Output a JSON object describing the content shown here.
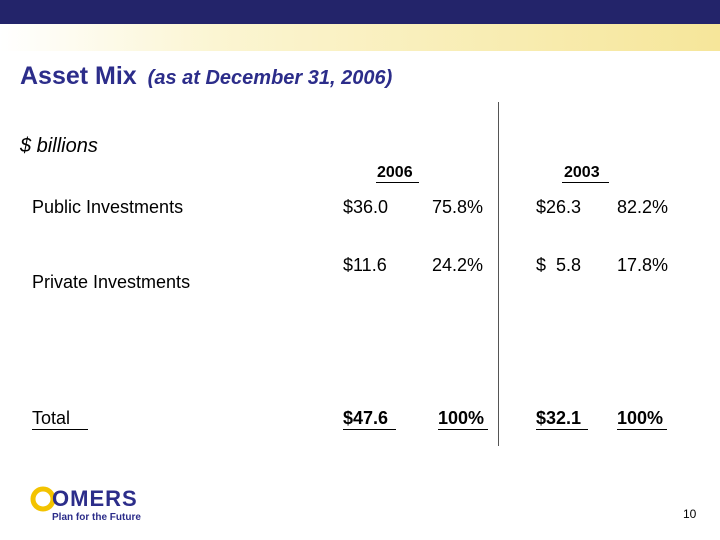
{
  "slide": {
    "title": "Asset Mix",
    "title_sub": "(as at December 31, 2006)",
    "units": "$ billions",
    "page_number": "10",
    "colors": {
      "band": "#23246a",
      "accent": "#f6e69a",
      "title": "#2c2d8a"
    }
  },
  "table": {
    "years": [
      "2006",
      "2003"
    ],
    "rows": [
      {
        "label": "Public Investments",
        "v2006": "$36.0",
        "p2006": "75.8%",
        "v2003": "$26.3",
        "p2003": "82.2%"
      },
      {
        "label": "Private Investments",
        "v2006": "$11.6",
        "p2006": "24.2%",
        "v2003": "$  5.8",
        "p2003": "17.8%"
      },
      {
        "label": "Total",
        "v2006": "$47.6",
        "p2006": "100%",
        "v2003": "$32.1",
        "p2003": "100%"
      }
    ]
  },
  "logo": {
    "name": "OMERS",
    "tagline": "Plan for the Future"
  }
}
